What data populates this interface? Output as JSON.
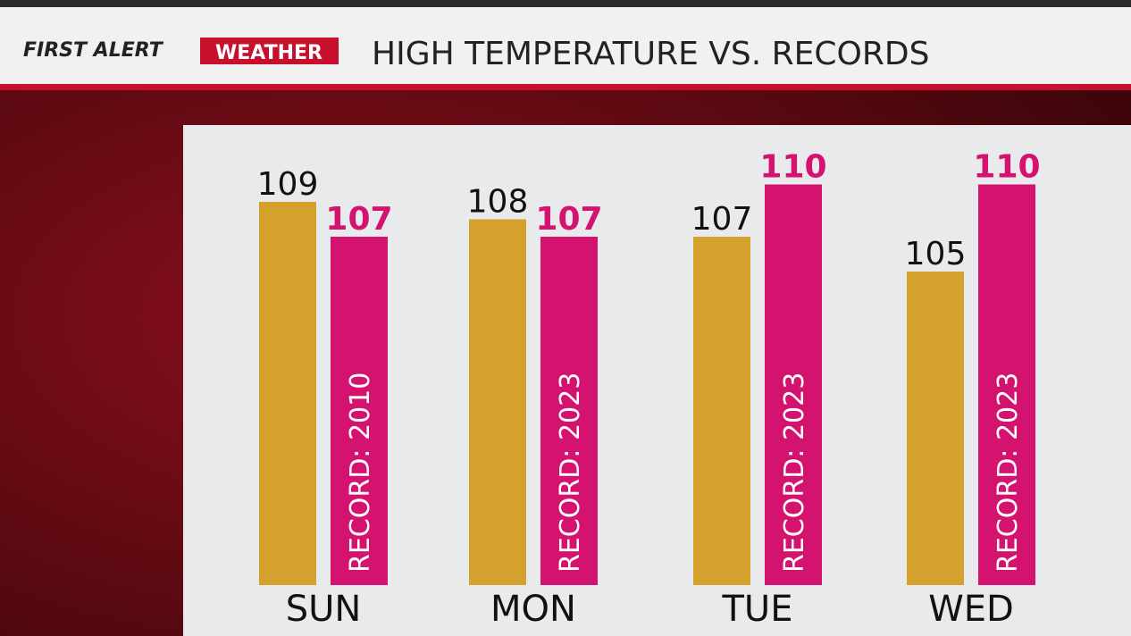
{
  "header": {
    "brand_first": "FIRST ALERT",
    "brand_second": "WEATHER"
  },
  "chart_data": {
    "type": "bar",
    "title": "HIGH TEMPERATURE VS. RECORDS",
    "categories": [
      "SUN",
      "MON",
      "TUE",
      "WED"
    ],
    "series": [
      {
        "color": "#d4a22c",
        "values": [
          109,
          108,
          107,
          105
        ]
      },
      {
        "color": "#d4126f",
        "values": [
          107,
          107,
          110,
          110
        ],
        "bar_labels": [
          "RECORD: 2010",
          "RECORD: 2023",
          "RECORD: 2023",
          "RECORD: 2023"
        ]
      }
    ],
    "ylim": [
      87,
      112
    ]
  }
}
